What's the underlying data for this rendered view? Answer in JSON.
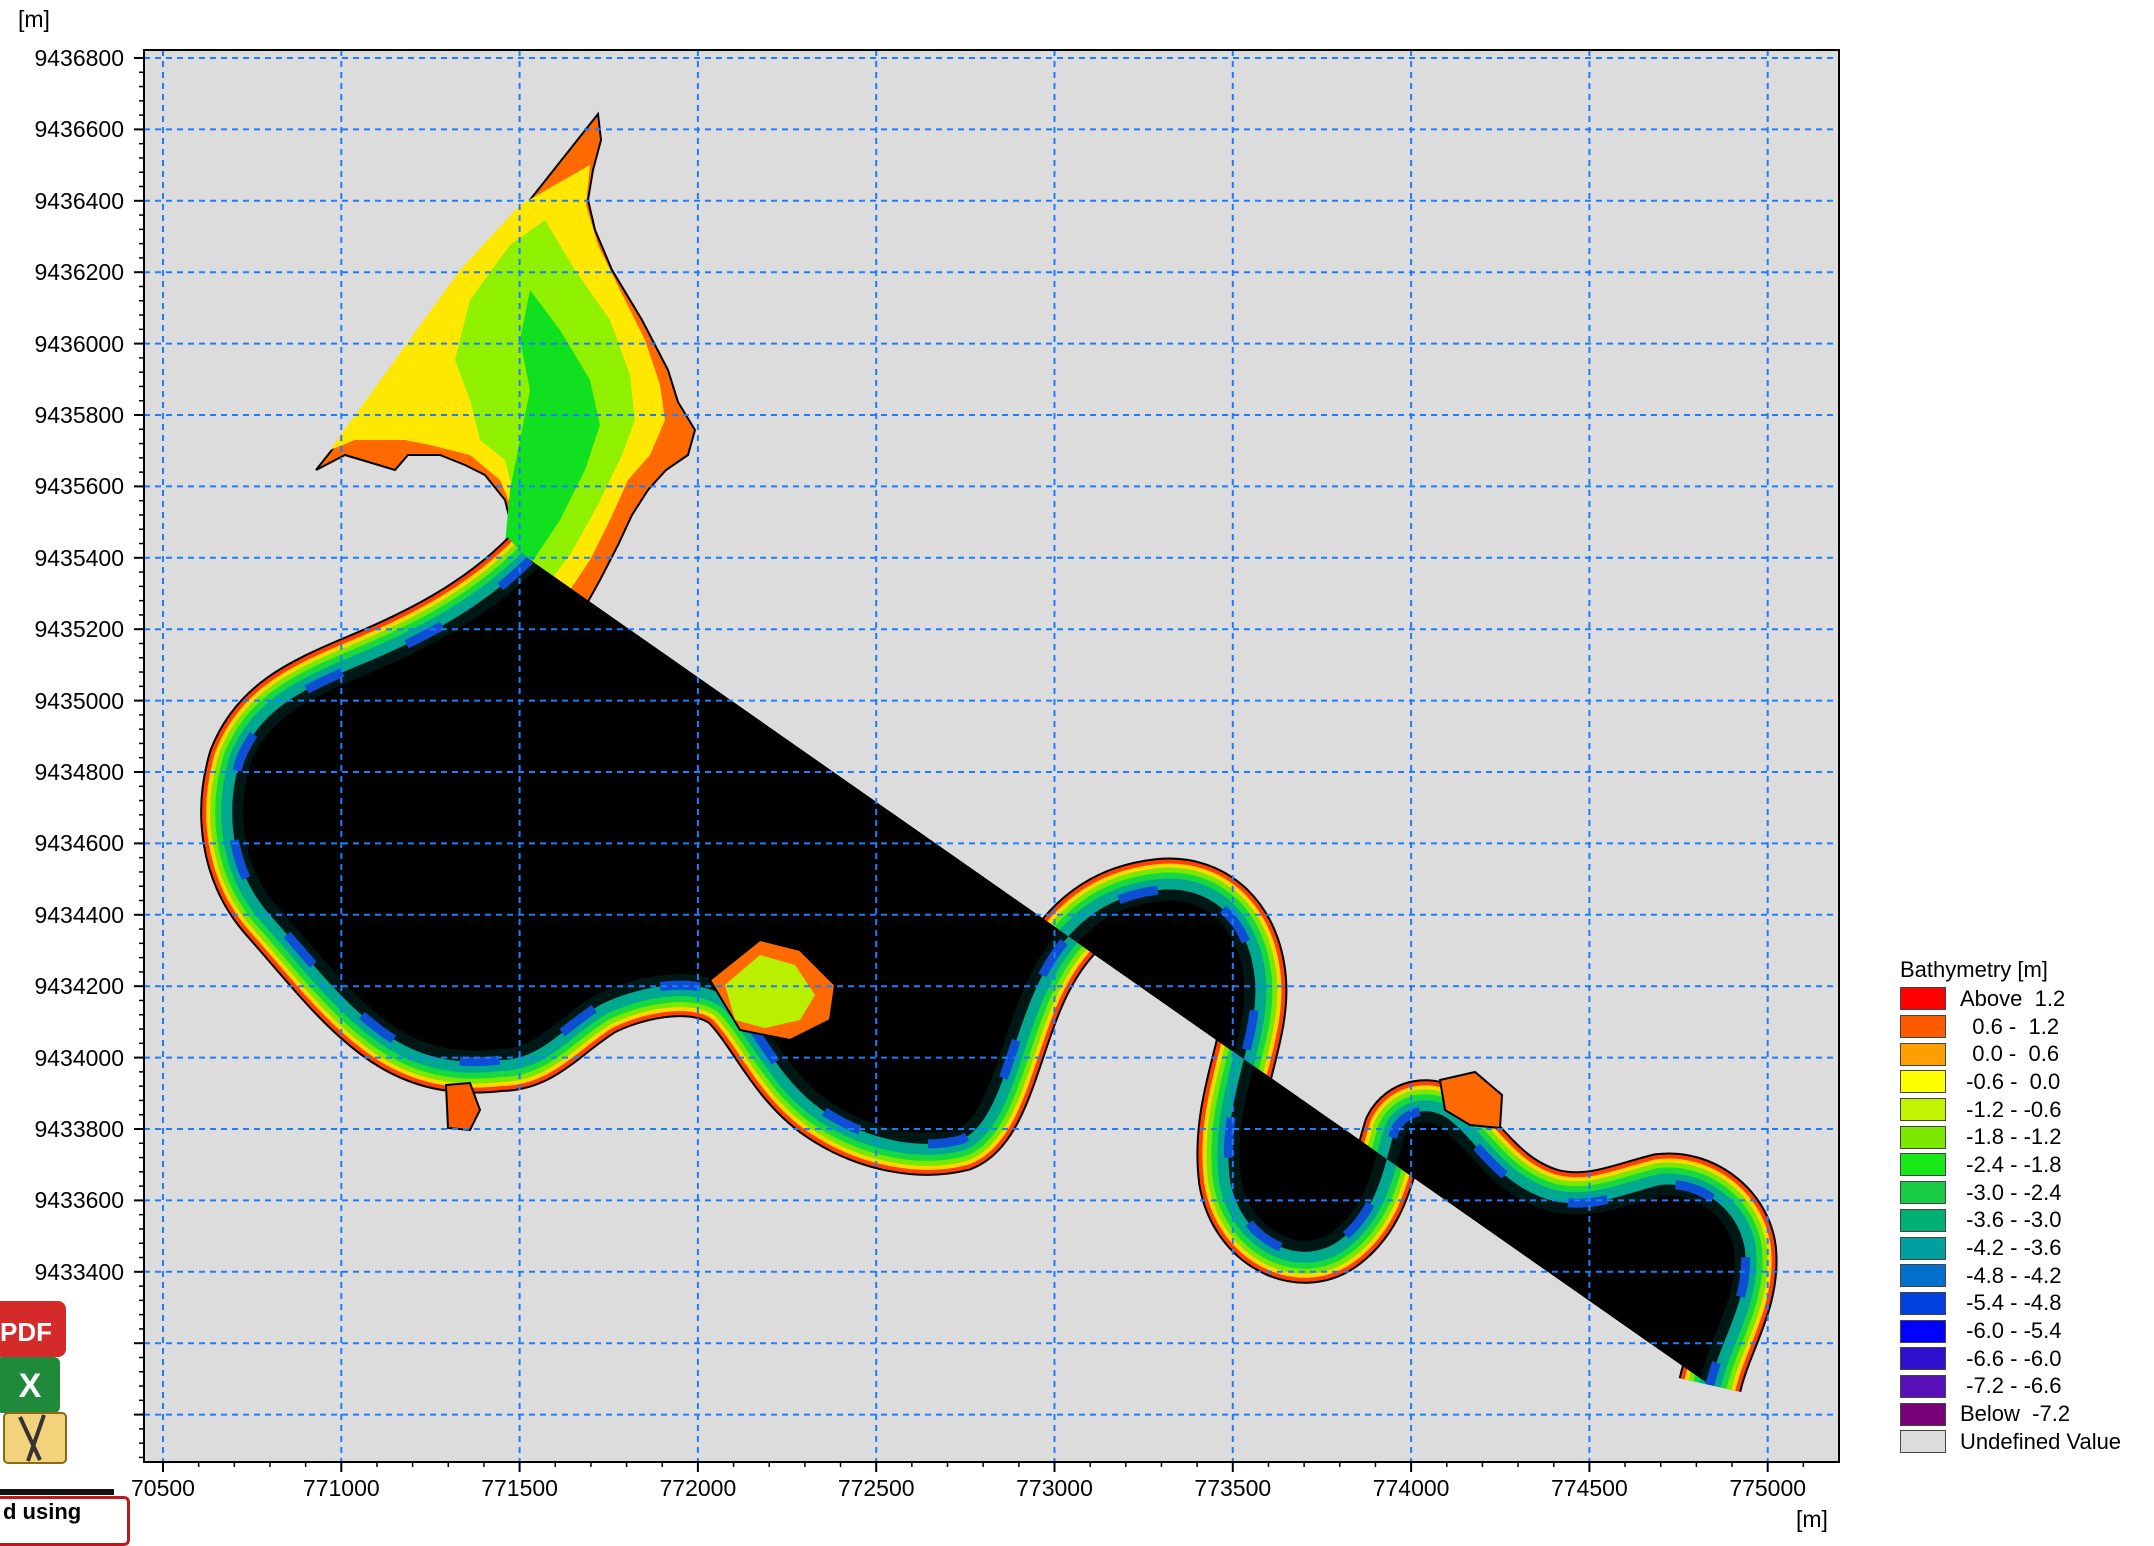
{
  "map": {
    "y_unit": "[m]",
    "x_unit": "[m]",
    "y_ticks": [
      "9436800",
      "9436600",
      "9436400",
      "9436200",
      "9436000",
      "9435800",
      "9435600",
      "9435400",
      "9435200",
      "9435000",
      "9434800",
      "9434600",
      "9434400",
      "9434200",
      "9434000",
      "9433800",
      "9433600",
      "9433400"
    ],
    "x_ticks": [
      "70500",
      "771000",
      "771500",
      "772000",
      "772500",
      "773000",
      "773500",
      "774000",
      "774500",
      "775000"
    ],
    "background_color": "#dcdcdc",
    "grid_color": "#1e7cff"
  },
  "legend": {
    "title": "Bathymetry [m]",
    "items": [
      {
        "label": "Above  1.2",
        "color": "#ff0000"
      },
      {
        "label": "  0.6 -  1.2",
        "color": "#ff5a00"
      },
      {
        "label": "  0.0 -  0.6",
        "color": "#ffa000"
      },
      {
        "label": " -0.6 -  0.0",
        "color": "#ffff00"
      },
      {
        "label": " -1.2 - -0.6",
        "color": "#c0f400"
      },
      {
        "label": " -1.8 - -1.2",
        "color": "#7de800"
      },
      {
        "label": " -2.4 - -1.8",
        "color": "#18e818"
      },
      {
        "label": " -3.0 - -2.4",
        "color": "#18cc46"
      },
      {
        "label": " -3.6 - -3.0",
        "color": "#00b072"
      },
      {
        "label": " -4.2 - -3.6",
        "color": "#00a0a0"
      },
      {
        "label": " -4.8 - -4.2",
        "color": "#0070cc"
      },
      {
        "label": " -5.4 - -4.8",
        "color": "#0040e0"
      },
      {
        "label": " -6.0 - -5.4",
        "color": "#0000ff"
      },
      {
        "label": " -6.6 - -6.0",
        "color": "#3010d0"
      },
      {
        "label": " -7.2 - -6.6",
        "color": "#5a10b8"
      },
      {
        "label": "Below  -7.2",
        "color": "#7a007a"
      },
      {
        "label": "Undefined Value",
        "color": "#dcdcdc"
      }
    ]
  },
  "app_icons": [
    "pdf-icon",
    "excel-icon",
    "zip-icon"
  ],
  "status_tab": {
    "text": "d using"
  }
}
